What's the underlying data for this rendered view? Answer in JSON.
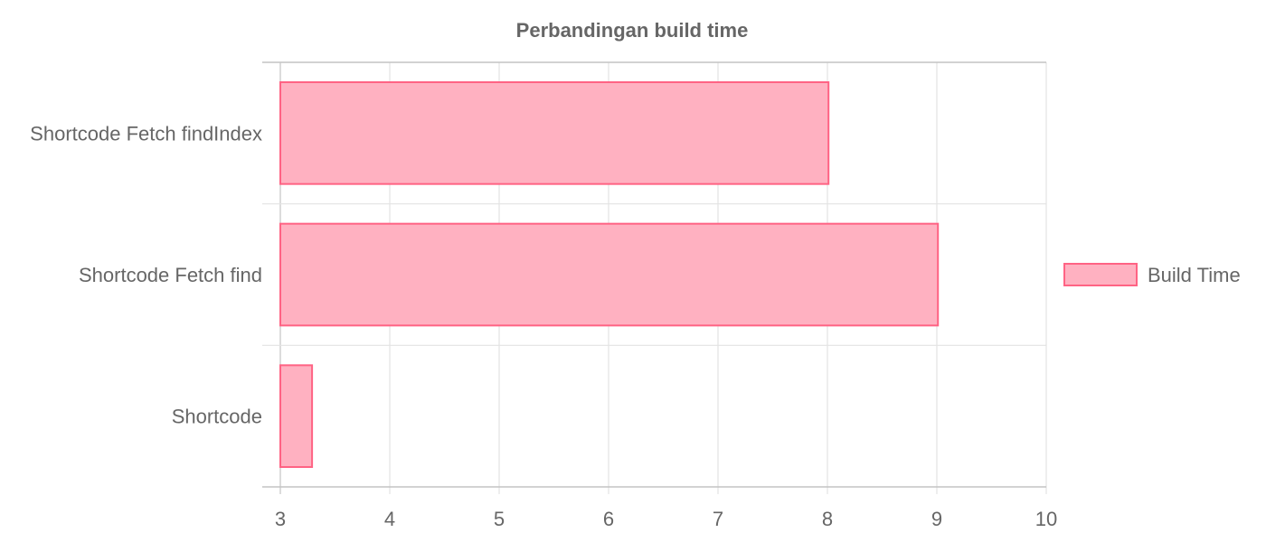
{
  "chart_data": {
    "type": "bar",
    "orientation": "horizontal",
    "title": "Perbandingan build time",
    "categories": [
      "Shortcode Fetch findIndex",
      "Shortcode Fetch find",
      "Shortcode"
    ],
    "series": [
      {
        "name": "Build Time",
        "values": [
          8.01,
          9.01,
          3.29
        ],
        "fill_color": "#ffb1c1",
        "border_color": "#ff6384"
      }
    ],
    "xlim": [
      3,
      10
    ],
    "x_ticks": [
      "3",
      "4",
      "5",
      "6",
      "7",
      "8",
      "9",
      "10"
    ],
    "grid": true,
    "legend_position": "right"
  }
}
